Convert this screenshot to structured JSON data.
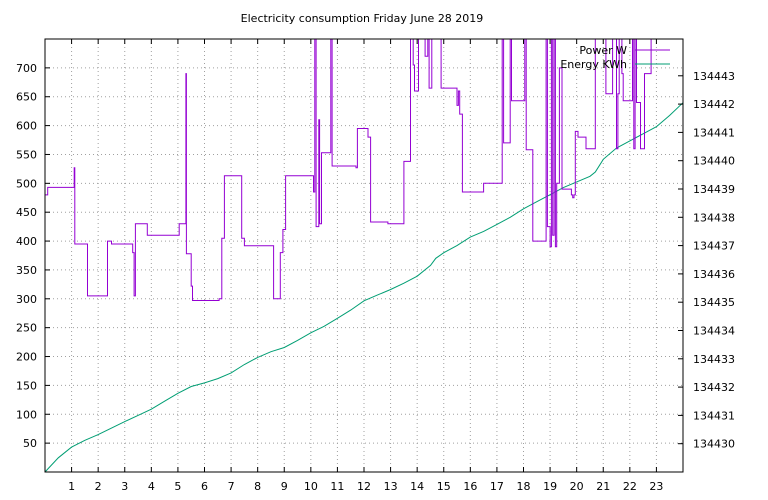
{
  "chart_data": {
    "type": "line",
    "title": "Electricity consumption Friday June 28 2019",
    "xlabel": "",
    "ylabel": "",
    "y2label": "",
    "xlim": [
      0,
      24
    ],
    "ylim": [
      0,
      750
    ],
    "y2lim": [
      134429,
      134444.3
    ],
    "xticks": [
      1,
      2,
      3,
      4,
      5,
      6,
      7,
      8,
      9,
      10,
      11,
      12,
      13,
      14,
      15,
      16,
      17,
      18,
      19,
      20,
      21,
      22,
      23
    ],
    "yticks": [
      50,
      100,
      150,
      200,
      250,
      300,
      350,
      400,
      450,
      500,
      550,
      600,
      650,
      700
    ],
    "y2ticks": [
      134430,
      134431,
      134432,
      134433,
      134434,
      134435,
      134436,
      134437,
      134438,
      134439,
      134440,
      134441,
      134442,
      134443
    ],
    "grid": true,
    "legend_position": "top-right",
    "series": [
      {
        "name": "Power W",
        "axis": "left",
        "color": "#9400d3",
        "points": [
          [
            0,
            480
          ],
          [
            0.1,
            480
          ],
          [
            0.1,
            493
          ],
          [
            1.1,
            493
          ],
          [
            1.1,
            527
          ],
          [
            1.12,
            527
          ],
          [
            1.12,
            395
          ],
          [
            1.6,
            395
          ],
          [
            1.6,
            305
          ],
          [
            2.35,
            305
          ],
          [
            2.35,
            400
          ],
          [
            2.5,
            400
          ],
          [
            2.5,
            395
          ],
          [
            3.3,
            395
          ],
          [
            3.3,
            380
          ],
          [
            3.35,
            380
          ],
          [
            3.35,
            305
          ],
          [
            3.4,
            305
          ],
          [
            3.4,
            430
          ],
          [
            3.85,
            430
          ],
          [
            3.85,
            410
          ],
          [
            5.05,
            410
          ],
          [
            5.05,
            430
          ],
          [
            5.3,
            430
          ],
          [
            5.3,
            690
          ],
          [
            5.32,
            690
          ],
          [
            5.32,
            378
          ],
          [
            5.5,
            378
          ],
          [
            5.5,
            322
          ],
          [
            5.55,
            322
          ],
          [
            5.55,
            297
          ],
          [
            6.55,
            297
          ],
          [
            6.55,
            300
          ],
          [
            6.65,
            300
          ],
          [
            6.65,
            405
          ],
          [
            6.75,
            405
          ],
          [
            6.75,
            513
          ],
          [
            7.4,
            513
          ],
          [
            7.4,
            405
          ],
          [
            7.5,
            405
          ],
          [
            7.5,
            392
          ],
          [
            8.6,
            392
          ],
          [
            8.6,
            300
          ],
          [
            8.85,
            300
          ],
          [
            8.85,
            380
          ],
          [
            8.95,
            380
          ],
          [
            8.95,
            420
          ],
          [
            9.05,
            420
          ],
          [
            9.05,
            513
          ],
          [
            10.1,
            513
          ],
          [
            10.1,
            485
          ],
          [
            10.15,
            485
          ],
          [
            10.15,
            750
          ],
          [
            10.2,
            750
          ],
          [
            10.2,
            425
          ],
          [
            10.3,
            425
          ],
          [
            10.3,
            610
          ],
          [
            10.33,
            610
          ],
          [
            10.33,
            430
          ],
          [
            10.4,
            430
          ],
          [
            10.4,
            553
          ],
          [
            10.75,
            553
          ],
          [
            10.75,
            750
          ],
          [
            10.8,
            750
          ],
          [
            10.8,
            530
          ],
          [
            11.7,
            530
          ],
          [
            11.7,
            527
          ],
          [
            11.75,
            527
          ],
          [
            11.75,
            595
          ],
          [
            12.15,
            595
          ],
          [
            12.15,
            580
          ],
          [
            12.25,
            580
          ],
          [
            12.25,
            433
          ],
          [
            12.9,
            433
          ],
          [
            12.9,
            430
          ],
          [
            13.5,
            430
          ],
          [
            13.5,
            538
          ],
          [
            13.75,
            538
          ],
          [
            13.75,
            750
          ],
          [
            13.85,
            750
          ],
          [
            13.85,
            705
          ],
          [
            13.9,
            705
          ],
          [
            13.9,
            660
          ],
          [
            14.05,
            660
          ],
          [
            14.05,
            750
          ],
          [
            14.3,
            750
          ],
          [
            14.3,
            720
          ],
          [
            14.4,
            720
          ],
          [
            14.4,
            750
          ],
          [
            14.45,
            750
          ],
          [
            14.45,
            665
          ],
          [
            14.55,
            665
          ],
          [
            14.55,
            750
          ],
          [
            14.9,
            750
          ],
          [
            14.9,
            665
          ],
          [
            15.5,
            665
          ],
          [
            15.5,
            635
          ],
          [
            15.55,
            635
          ],
          [
            15.55,
            660
          ],
          [
            15.6,
            660
          ],
          [
            15.6,
            620
          ],
          [
            15.7,
            620
          ],
          [
            15.7,
            485
          ],
          [
            16.5,
            485
          ],
          [
            16.5,
            500
          ],
          [
            17.2,
            500
          ],
          [
            17.2,
            750
          ],
          [
            17.25,
            750
          ],
          [
            17.25,
            570
          ],
          [
            17.5,
            570
          ],
          [
            17.5,
            750
          ],
          [
            17.55,
            750
          ],
          [
            17.55,
            643
          ],
          [
            18.05,
            643
          ],
          [
            18.05,
            750
          ],
          [
            18.1,
            750
          ],
          [
            18.1,
            558
          ],
          [
            18.35,
            558
          ],
          [
            18.35,
            400
          ],
          [
            18.85,
            400
          ],
          [
            18.85,
            750
          ],
          [
            18.9,
            750
          ],
          [
            18.9,
            425
          ],
          [
            19.0,
            425
          ],
          [
            19.0,
            390
          ],
          [
            19.05,
            390
          ],
          [
            19.05,
            750
          ],
          [
            19.1,
            750
          ],
          [
            19.1,
            410
          ],
          [
            19.15,
            410
          ],
          [
            19.15,
            750
          ],
          [
            19.2,
            750
          ],
          [
            19.2,
            390
          ],
          [
            19.25,
            390
          ],
          [
            19.25,
            500
          ],
          [
            19.35,
            500
          ],
          [
            19.35,
            700
          ],
          [
            19.45,
            700
          ],
          [
            19.45,
            490
          ],
          [
            19.8,
            490
          ],
          [
            19.8,
            480
          ],
          [
            19.85,
            480
          ],
          [
            19.85,
            475
          ],
          [
            19.9,
            475
          ],
          [
            19.9,
            480
          ],
          [
            19.95,
            480
          ],
          [
            19.95,
            590
          ],
          [
            20.05,
            590
          ],
          [
            20.05,
            580
          ],
          [
            20.35,
            580
          ],
          [
            20.35,
            560
          ],
          [
            20.7,
            560
          ],
          [
            20.7,
            750
          ],
          [
            21.1,
            750
          ],
          [
            21.1,
            655
          ],
          [
            21.35,
            655
          ],
          [
            21.35,
            750
          ],
          [
            21.5,
            750
          ],
          [
            21.5,
            560
          ],
          [
            21.55,
            560
          ],
          [
            21.55,
            655
          ],
          [
            21.6,
            655
          ],
          [
            21.6,
            750
          ],
          [
            21.7,
            750
          ],
          [
            21.7,
            690
          ],
          [
            21.75,
            690
          ],
          [
            21.75,
            643
          ],
          [
            22.1,
            643
          ],
          [
            22.1,
            750
          ],
          [
            22.15,
            750
          ],
          [
            22.15,
            560
          ],
          [
            22.2,
            560
          ],
          [
            22.2,
            750
          ],
          [
            22.25,
            750
          ],
          [
            22.25,
            640
          ],
          [
            22.4,
            640
          ],
          [
            22.4,
            560
          ],
          [
            22.55,
            560
          ],
          [
            22.55,
            690
          ],
          [
            22.8,
            690
          ],
          [
            22.8,
            750
          ],
          [
            24,
            750
          ]
        ]
      },
      {
        "name": "Energy KWh",
        "axis": "right",
        "color": "#009e73",
        "points": [
          [
            0,
            134429
          ],
          [
            0.5,
            134429.5
          ],
          [
            1.0,
            134429.88
          ],
          [
            1.5,
            134430.12
          ],
          [
            2.0,
            134430.32
          ],
          [
            2.5,
            134430.55
          ],
          [
            3.0,
            134430.78
          ],
          [
            3.5,
            134431.0
          ],
          [
            4.0,
            134431.22
          ],
          [
            4.5,
            134431.5
          ],
          [
            5.0,
            134431.78
          ],
          [
            5.5,
            134432.02
          ],
          [
            6.0,
            134432.15
          ],
          [
            6.5,
            134432.3
          ],
          [
            7.0,
            134432.5
          ],
          [
            7.5,
            134432.8
          ],
          [
            8.0,
            134433.05
          ],
          [
            8.5,
            134433.25
          ],
          [
            9.0,
            134433.4
          ],
          [
            9.5,
            134433.65
          ],
          [
            10.0,
            134433.92
          ],
          [
            10.5,
            134434.15
          ],
          [
            11.0,
            134434.43
          ],
          [
            11.5,
            134434.72
          ],
          [
            12.0,
            134435.05
          ],
          [
            12.5,
            134435.25
          ],
          [
            13.0,
            134435.45
          ],
          [
            13.5,
            134435.67
          ],
          [
            14.0,
            134435.92
          ],
          [
            14.5,
            134436.3
          ],
          [
            14.7,
            134436.55
          ],
          [
            15.0,
            134436.75
          ],
          [
            15.5,
            134437.0
          ],
          [
            16.0,
            134437.3
          ],
          [
            16.5,
            134437.5
          ],
          [
            17.0,
            134437.75
          ],
          [
            17.5,
            134438.0
          ],
          [
            18.0,
            134438.3
          ],
          [
            18.5,
            134438.55
          ],
          [
            19.0,
            134438.8
          ],
          [
            19.5,
            134439.05
          ],
          [
            20.0,
            134439.25
          ],
          [
            20.5,
            134439.45
          ],
          [
            20.7,
            134439.6
          ],
          [
            21.0,
            134440.05
          ],
          [
            21.5,
            134440.45
          ],
          [
            22.0,
            134440.7
          ],
          [
            22.5,
            134440.95
          ],
          [
            23.0,
            134441.2
          ],
          [
            23.5,
            134441.6
          ],
          [
            24.0,
            134442.05
          ]
        ]
      }
    ]
  }
}
